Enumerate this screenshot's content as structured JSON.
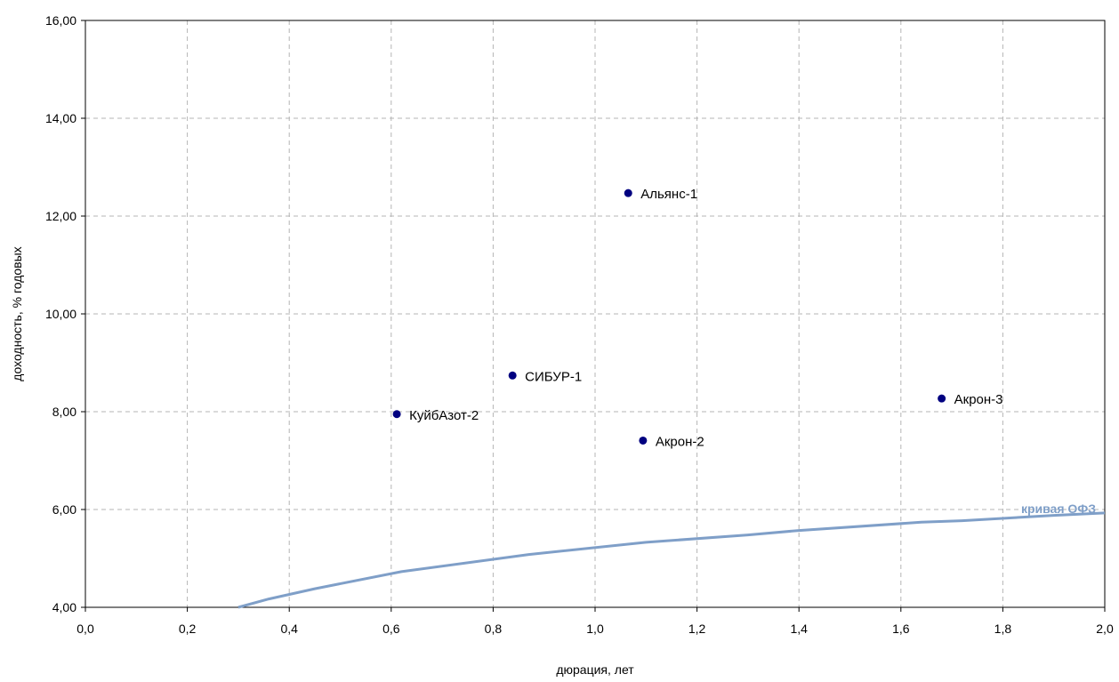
{
  "chart_data": {
    "type": "scatter",
    "title": "",
    "xlabel": "дюрация, лет",
    "ylabel": "доходность, % годовых",
    "xlim": [
      0,
      2
    ],
    "ylim": [
      4,
      16
    ],
    "grid": true,
    "x_ticks": [
      "0,0",
      "0,2",
      "0,4",
      "0,6",
      "0,8",
      "1,0",
      "1,2",
      "1,4",
      "1,6",
      "1,8",
      "2,0"
    ],
    "y_ticks": [
      "4,00",
      "6,00",
      "8,00",
      "10,00",
      "12,00",
      "14,00",
      "16,00"
    ],
    "points": [
      {
        "name": "Альянс-1",
        "x": 1.065,
        "y": 12.47
      },
      {
        "name": "СИБУР-1",
        "x": 0.838,
        "y": 8.74
      },
      {
        "name": "КуйбАзот-2",
        "x": 0.611,
        "y": 7.95
      },
      {
        "name": "Акрон-2",
        "x": 1.094,
        "y": 7.41
      },
      {
        "name": "Акрон-3",
        "x": 1.68,
        "y": 8.27
      }
    ],
    "curve": {
      "name": "кривая ОФЗ",
      "color": "#7f9fc8",
      "x": [
        0.3,
        0.36,
        0.45,
        0.62,
        0.87,
        1.1,
        1.3,
        1.4,
        1.64,
        1.72,
        1.9,
        2.0
      ],
      "y": [
        4.0,
        4.17,
        4.38,
        4.73,
        5.08,
        5.33,
        5.48,
        5.57,
        5.74,
        5.77,
        5.88,
        5.93
      ]
    },
    "marker_color": "#000080"
  }
}
